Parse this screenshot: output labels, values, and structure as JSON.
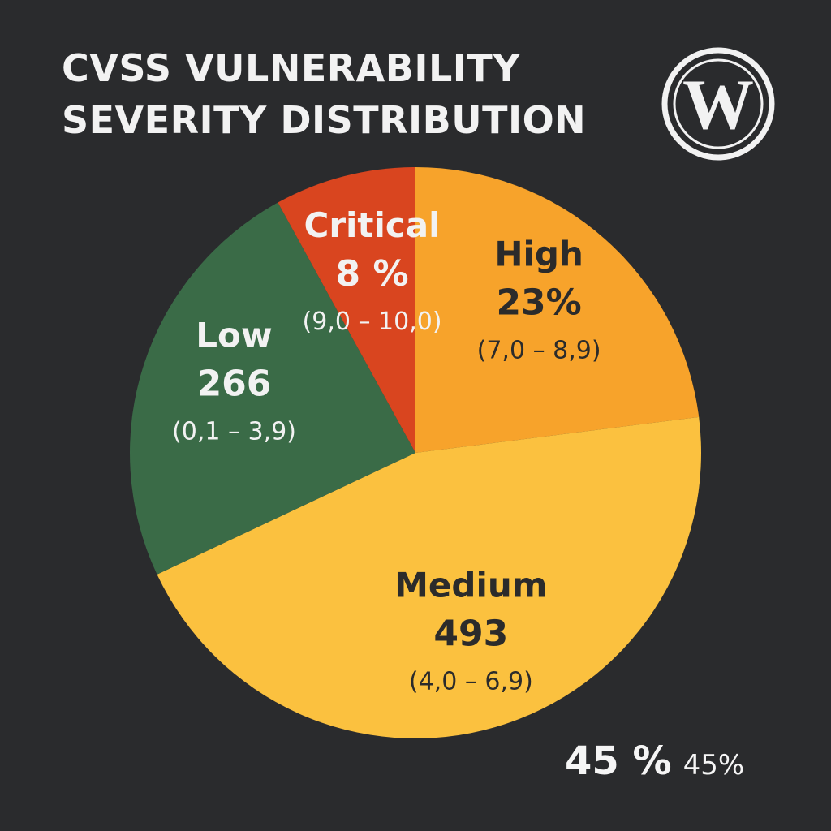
{
  "title_lines": [
    "CVSS VULNERABILITY",
    "SEVERITY DISTRIBUTION"
  ],
  "logo": {
    "icon": "wordpress-logo",
    "letter": "W",
    "color": "#f2f2f2"
  },
  "chart_data": {
    "type": "pie",
    "title": "CVSS VULNERABILITY SEVERITY DISTRIBUTION",
    "start_angle_deg": 0,
    "slices": [
      {
        "label": "High",
        "value_text": "23%",
        "range": "(7,0 – 8,9)",
        "share": 0.23,
        "color": "#f7a32b",
        "text_color": "#2b2b2b"
      },
      {
        "label": "Medium",
        "value_text": "493",
        "range": "(4,0 – 6,9)",
        "share": 0.45,
        "color": "#fbc13f",
        "text_color": "#2b2b2b"
      },
      {
        "label": "Low",
        "value_text": "266",
        "range": "(0,1 – 3,9)",
        "share": 0.24,
        "color": "#3a6b47",
        "text_color": "#f2f2f2"
      },
      {
        "label": "Critical",
        "value_text": "8 %",
        "range": "(9,0 – 10,0)",
        "share": 0.08,
        "color": "#d9451f",
        "text_color": "#f2f2f2"
      }
    ],
    "legend": "none",
    "annotations": [
      "45 %",
      "45%"
    ]
  }
}
